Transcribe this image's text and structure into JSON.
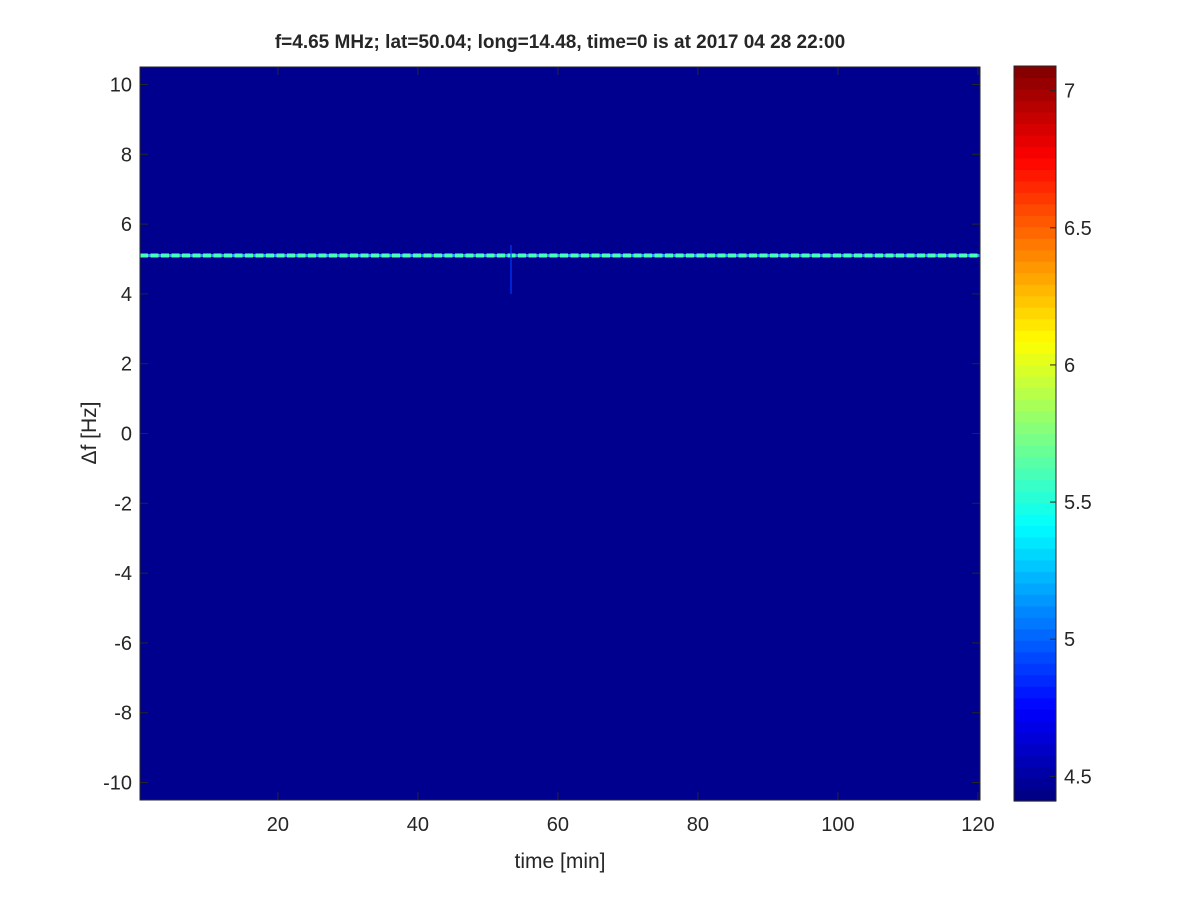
{
  "chart_data": {
    "type": "heatmap",
    "title": "f=4.65 MHz;  lat=50.04; long=14.48, time=0 is at 2017 04 28 22:00",
    "xlabel": "time [min]",
    "ylabel": "Δf [Hz]",
    "xlim": [
      0.3,
      120.3
    ],
    "ylim": [
      -10.5,
      10.5
    ],
    "xticks": [
      20,
      40,
      60,
      80,
      100,
      120
    ],
    "yticks": [
      -10,
      -8,
      -6,
      -4,
      -2,
      0,
      2,
      4,
      6,
      8,
      10
    ],
    "colormap": "jet",
    "clim": [
      4.41,
      7.09
    ],
    "colorbar_ticks": [
      4.5,
      5,
      5.5,
      6,
      6.5,
      7
    ],
    "background_level": 4.45,
    "features": [
      {
        "kind": "horizontal-line",
        "delta_f": 5.1,
        "time_range": [
          0.3,
          120.3
        ],
        "level": 5.6
      },
      {
        "kind": "vertical-spike",
        "time": 53.3,
        "delta_f_range": [
          4.0,
          5.4
        ],
        "level": 4.9
      }
    ],
    "grid": false
  }
}
